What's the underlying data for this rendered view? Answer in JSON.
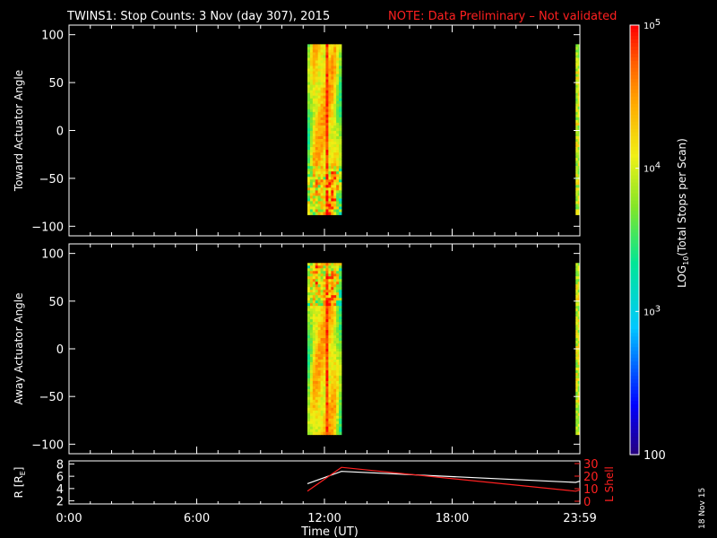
{
  "title": {
    "main": "TWINS1: Stop Counts:  3 Nov (day 307), 2015",
    "note": "NOTE: Data Preliminary – Not validated"
  },
  "colors": {
    "background": "#000000",
    "axes": "#ffffff",
    "note": "#ff2020",
    "l_shell": "#ff2020",
    "radius": "#ffffff"
  },
  "x_axis": {
    "label": "Time (UT)",
    "ticks": [
      "0:00",
      "6:00",
      "12:00",
      "18:00",
      "23:59"
    ],
    "tick_hours": [
      0,
      6,
      12,
      18,
      24
    ],
    "range_hours": [
      0,
      24
    ]
  },
  "stamp": "18 Nov 15",
  "chart_data": [
    {
      "type": "heatmap",
      "name": "toward",
      "ylabel": "Toward Actuator Angle",
      "ylim": [
        -110,
        110
      ],
      "yticks": [
        100,
        50,
        0,
        -50,
        -100
      ],
      "y_extent": [
        -88,
        90
      ],
      "x_unit": "hours UT",
      "bands": [
        {
          "x": [
            11.2,
            12.8
          ],
          "seed": 3
        },
        {
          "x": [
            23.8,
            24.0
          ],
          "seed": 7
        }
      ],
      "color_scale": "log10 counts (100 to 100000)"
    },
    {
      "type": "heatmap",
      "name": "away",
      "ylabel": "Away Actuator Angle",
      "ylim": [
        -110,
        110
      ],
      "yticks": [
        100,
        50,
        0,
        -50,
        -100
      ],
      "y_extent": [
        -90,
        90
      ],
      "x_unit": "hours UT",
      "bands": [
        {
          "x": [
            11.2,
            12.8
          ],
          "seed": 11
        },
        {
          "x": [
            23.8,
            24.0
          ],
          "seed": 13
        }
      ],
      "color_scale": "log10 counts (100 to 100000)"
    },
    {
      "type": "line",
      "name": "orbit",
      "ylabel_left": "R [R",
      "ylabel_left_sub": "E",
      "ylabel_left_close": "]",
      "ylabel_right": "L Shell",
      "ylim_left": [
        1.5,
        8.5
      ],
      "yticks_left": [
        2,
        4,
        6,
        8
      ],
      "ylim_right": [
        0,
        30
      ],
      "yticks_right": [
        0,
        10,
        20,
        30
      ],
      "series": [
        {
          "axis": "left",
          "color": "#ffffff",
          "x": [
            11.2,
            12.8,
            23.8,
            24.0
          ],
          "y": [
            4.8,
            6.8,
            5.0,
            5.2
          ]
        },
        {
          "axis": "right",
          "color": "#ff2020",
          "x": [
            11.2,
            12.8,
            23.8,
            24.0
          ],
          "y": [
            8,
            27,
            8,
            9
          ]
        }
      ]
    }
  ],
  "colorbar": {
    "label_pre": "LOG",
    "label_sub": "10",
    "label_post": "(Total Stops per Scan)",
    "ticks": [
      {
        "value": 100000,
        "base": "10",
        "exp": "5"
      },
      {
        "value": 10000,
        "base": "10",
        "exp": "4"
      },
      {
        "value": 1000,
        "base": "10",
        "exp": "3"
      },
      {
        "value": 100,
        "base": "100",
        "exp": ""
      }
    ],
    "range": [
      100,
      100000
    ]
  }
}
